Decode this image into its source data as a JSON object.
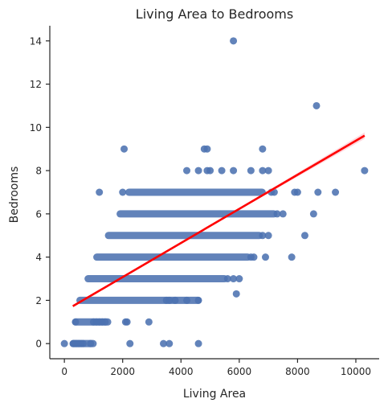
{
  "chart_data": {
    "type": "scatter",
    "title": "Living Area to Bedrooms",
    "xlabel": "Living Area",
    "ylabel": "Bedrooms",
    "xlim": [
      -500,
      10800
    ],
    "ylim": [
      -0.7,
      14.7
    ],
    "x_ticks": [
      0,
      2000,
      4000,
      6000,
      8000,
      10000
    ],
    "y_ticks": [
      0,
      2,
      4,
      6,
      8,
      10,
      12,
      14
    ],
    "grid": false,
    "legend": "none",
    "point_color": "#4c72b0",
    "regression_color": "#ff0000",
    "regression_ci_color": "#ffb6c1",
    "regression_line": {
      "x": [
        290,
        10300
      ],
      "y": [
        1.73,
        9.62
      ]
    },
    "bands": [
      {
        "y": 0,
        "x_min": 290,
        "x_max": 1000
      },
      {
        "y": 1,
        "x_min": 380,
        "x_max": 1500
      },
      {
        "y": 2,
        "x_min": 520,
        "x_max": 4600
      },
      {
        "y": 3,
        "x_min": 800,
        "x_max": 5500
      },
      {
        "y": 4,
        "x_min": 1100,
        "x_max": 6300
      },
      {
        "y": 5,
        "x_min": 1500,
        "x_max": 6700
      },
      {
        "y": 6,
        "x_min": 1900,
        "x_max": 7200
      },
      {
        "y": 7,
        "x_min": 2200,
        "x_max": 6800
      }
    ],
    "points": [
      {
        "x": 0,
        "y": 0
      },
      {
        "x": 300,
        "y": 0
      },
      {
        "x": 330,
        "y": 0
      },
      {
        "x": 380,
        "y": 0
      },
      {
        "x": 420,
        "y": 0
      },
      {
        "x": 470,
        "y": 0
      },
      {
        "x": 520,
        "y": 0
      },
      {
        "x": 580,
        "y": 0
      },
      {
        "x": 640,
        "y": 0
      },
      {
        "x": 900,
        "y": 0
      },
      {
        "x": 2250,
        "y": 0
      },
      {
        "x": 3400,
        "y": 0
      },
      {
        "x": 3600,
        "y": 0
      },
      {
        "x": 4600,
        "y": 0
      },
      {
        "x": 380,
        "y": 1
      },
      {
        "x": 1000,
        "y": 1
      },
      {
        "x": 1100,
        "y": 1
      },
      {
        "x": 1200,
        "y": 1
      },
      {
        "x": 1300,
        "y": 1
      },
      {
        "x": 1400,
        "y": 1
      },
      {
        "x": 2100,
        "y": 1
      },
      {
        "x": 2150,
        "y": 1
      },
      {
        "x": 2900,
        "y": 1
      },
      {
        "x": 3500,
        "y": 2
      },
      {
        "x": 3600,
        "y": 2
      },
      {
        "x": 3800,
        "y": 2
      },
      {
        "x": 4200,
        "y": 2
      },
      {
        "x": 4600,
        "y": 2
      },
      {
        "x": 5600,
        "y": 3
      },
      {
        "x": 5800,
        "y": 3
      },
      {
        "x": 6000,
        "y": 3
      },
      {
        "x": 5900,
        "y": 2.3
      },
      {
        "x": 6400,
        "y": 4
      },
      {
        "x": 6500,
        "y": 4
      },
      {
        "x": 6900,
        "y": 4
      },
      {
        "x": 7800,
        "y": 4
      },
      {
        "x": 6800,
        "y": 5
      },
      {
        "x": 7000,
        "y": 5
      },
      {
        "x": 8250,
        "y": 5
      },
      {
        "x": 7300,
        "y": 6
      },
      {
        "x": 7500,
        "y": 6
      },
      {
        "x": 8550,
        "y": 6
      },
      {
        "x": 1200,
        "y": 7
      },
      {
        "x": 2000,
        "y": 7
      },
      {
        "x": 7100,
        "y": 7
      },
      {
        "x": 7200,
        "y": 7
      },
      {
        "x": 7900,
        "y": 7
      },
      {
        "x": 8000,
        "y": 7
      },
      {
        "x": 8700,
        "y": 7
      },
      {
        "x": 9300,
        "y": 7
      },
      {
        "x": 4200,
        "y": 8
      },
      {
        "x": 4600,
        "y": 8
      },
      {
        "x": 4900,
        "y": 8
      },
      {
        "x": 5000,
        "y": 8
      },
      {
        "x": 5400,
        "y": 8
      },
      {
        "x": 5800,
        "y": 8
      },
      {
        "x": 6400,
        "y": 8
      },
      {
        "x": 6800,
        "y": 8
      },
      {
        "x": 7000,
        "y": 8
      },
      {
        "x": 10300,
        "y": 8
      },
      {
        "x": 2050,
        "y": 9
      },
      {
        "x": 4800,
        "y": 9
      },
      {
        "x": 4900,
        "y": 9
      },
      {
        "x": 6800,
        "y": 9
      },
      {
        "x": 8650,
        "y": 11
      },
      {
        "x": 5800,
        "y": 14
      }
    ]
  }
}
